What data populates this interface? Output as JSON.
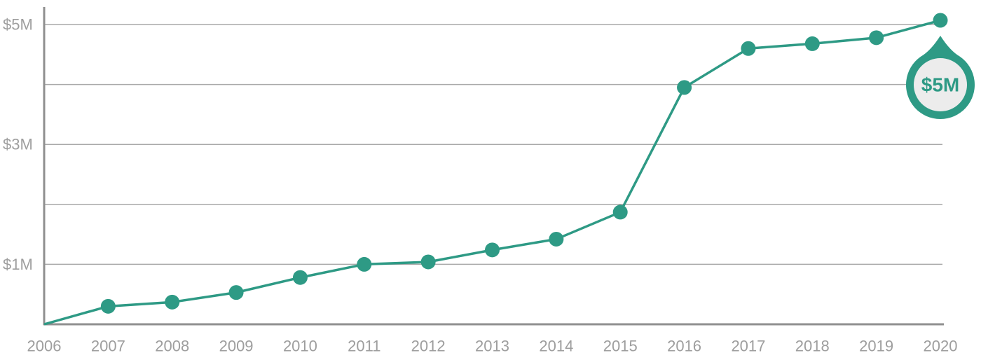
{
  "chart_data": {
    "type": "line",
    "x": [
      "2006",
      "2007",
      "2008",
      "2009",
      "2010",
      "2011",
      "2012",
      "2013",
      "2014",
      "2015",
      "2016",
      "2017",
      "2018",
      "2019",
      "2020"
    ],
    "series": [
      {
        "values": [
          0,
          0.3,
          0.37,
          0.53,
          0.78,
          1.0,
          1.04,
          1.24,
          1.42,
          1.87,
          3.95,
          4.6,
          4.68,
          4.78,
          5.07
        ]
      }
    ],
    "ylim": [
      0,
      5.3
    ],
    "y_ticks": [
      {
        "value": 1,
        "label": "$1M"
      },
      {
        "value": 3,
        "label": "$3M"
      },
      {
        "value": 5,
        "label": "$5M"
      }
    ],
    "gridlines": [
      1,
      2,
      3,
      4,
      5
    ],
    "grid": true,
    "annotation": {
      "label": "$5M",
      "at": "2020"
    },
    "title": "",
    "xlabel": "",
    "ylabel": ""
  },
  "colors": {
    "line": "#2e9a85",
    "marker": "#2e9a85",
    "pin_fill": "#2e9a85",
    "pin_inner": "#ececec",
    "pin_text": "#2e9a85",
    "grid": "#a9a9a9",
    "axis": "#8f8f8f",
    "tick_text": "#9e9e9e"
  }
}
